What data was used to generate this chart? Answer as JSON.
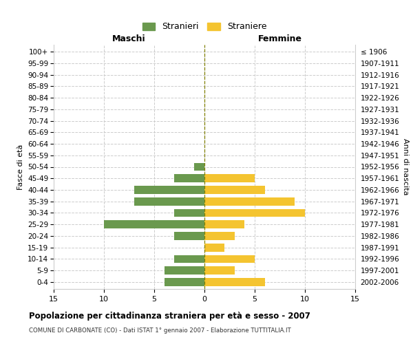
{
  "age_groups": [
    "100+",
    "95-99",
    "90-94",
    "85-89",
    "80-84",
    "75-79",
    "70-74",
    "65-69",
    "60-64",
    "55-59",
    "50-54",
    "45-49",
    "40-44",
    "35-39",
    "30-34",
    "25-29",
    "20-24",
    "15-19",
    "10-14",
    "5-9",
    "0-4"
  ],
  "birth_years": [
    "≤ 1906",
    "1907-1911",
    "1912-1916",
    "1917-1921",
    "1922-1926",
    "1927-1931",
    "1932-1936",
    "1937-1941",
    "1942-1946",
    "1947-1951",
    "1952-1956",
    "1957-1961",
    "1962-1966",
    "1967-1971",
    "1972-1976",
    "1977-1981",
    "1982-1986",
    "1987-1991",
    "1992-1996",
    "1997-2001",
    "2002-2006"
  ],
  "males": [
    0,
    0,
    0,
    0,
    0,
    0,
    0,
    0,
    0,
    0,
    1,
    3,
    7,
    7,
    3,
    10,
    3,
    0,
    3,
    4,
    4
  ],
  "females": [
    0,
    0,
    0,
    0,
    0,
    0,
    0,
    0,
    0,
    0,
    0,
    5,
    6,
    9,
    10,
    4,
    3,
    2,
    5,
    3,
    6
  ],
  "male_color": "#6a994e",
  "female_color": "#f4c430",
  "title": "Popolazione per cittadinanza straniera per età e sesso - 2007",
  "subtitle": "COMUNE DI CARBONATE (CO) - Dati ISTAT 1° gennaio 2007 - Elaborazione TUTTITALIA.IT",
  "xlabel_left": "Maschi",
  "xlabel_right": "Femmine",
  "ylabel_left": "Fasce di età",
  "ylabel_right": "Anni di nascita",
  "legend_male": "Stranieri",
  "legend_female": "Straniere",
  "xlim": 15,
  "bg_color": "#ffffff",
  "grid_color": "#cccccc"
}
